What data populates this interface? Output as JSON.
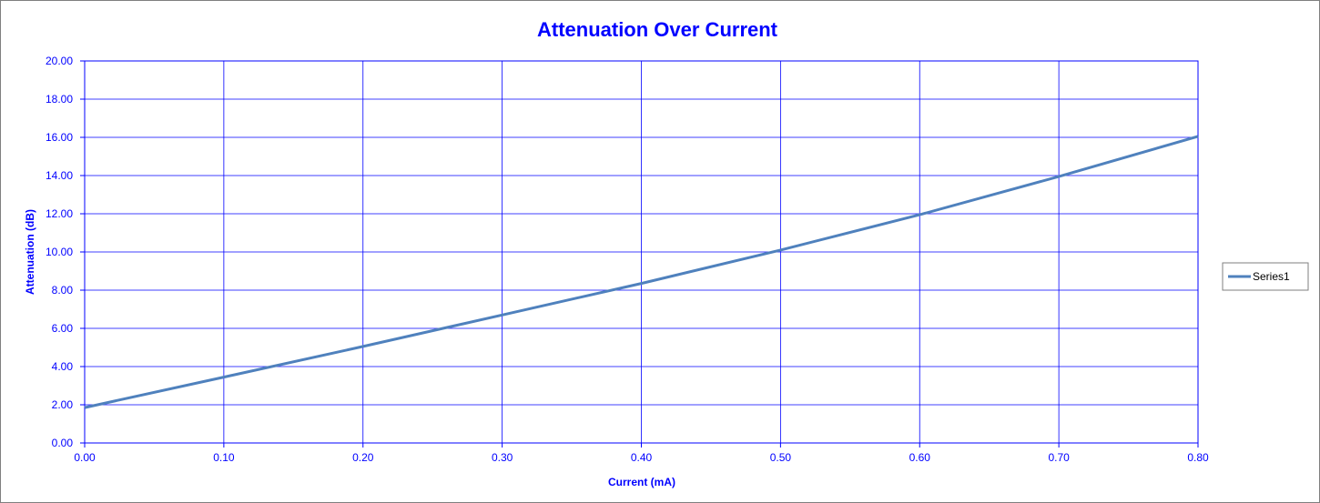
{
  "colors": {
    "series": "#4f81bd",
    "grid": "#0000ff",
    "text": "#0000ff"
  },
  "chart_data": {
    "type": "line",
    "title": "Attenuation Over Current",
    "xlabel": "Current (mA)",
    "ylabel": "Attenuation (dB)",
    "xlim": [
      0,
      0.8
    ],
    "ylim": [
      0,
      20
    ],
    "x_ticks": [
      "0.00",
      "0.10",
      "0.20",
      "0.30",
      "0.40",
      "0.50",
      "0.60",
      "0.70",
      "0.80"
    ],
    "y_ticks": [
      "0.00",
      "2.00",
      "4.00",
      "6.00",
      "8.00",
      "10.00",
      "12.00",
      "14.00",
      "16.00",
      "18.00",
      "20.00"
    ],
    "grid": true,
    "legend_position": "right",
    "series": [
      {
        "name": "Series1",
        "x": [
          0.0,
          0.1,
          0.2,
          0.3,
          0.4,
          0.5,
          0.6,
          0.7,
          0.8
        ],
        "y": [
          1.85,
          3.45,
          5.05,
          6.7,
          8.35,
          10.1,
          11.95,
          13.95,
          16.05
        ]
      }
    ]
  }
}
